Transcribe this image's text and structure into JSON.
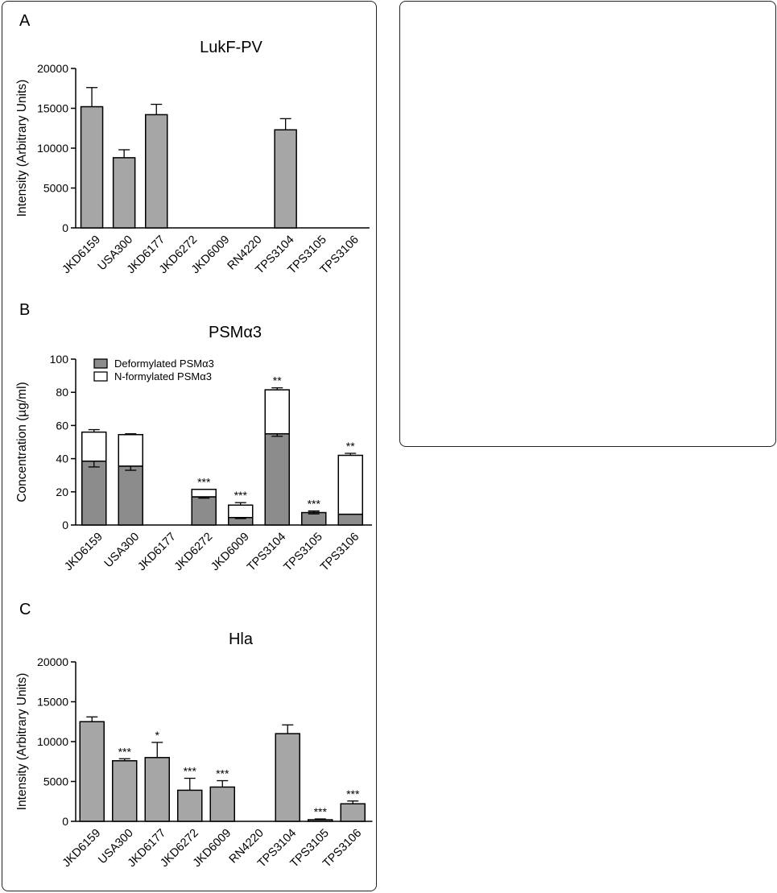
{
  "chart_data": [
    {
      "panel_label": "A",
      "type": "bar",
      "title": "LukF-PV",
      "ylabel": "Intensity (Arbitrary Units)",
      "ylim": [
        0,
        20000
      ],
      "yticks": [
        "0",
        "5000",
        "10000",
        "15000",
        "20000"
      ],
      "categories": [
        "JKD6159",
        "USA300",
        "JKD6177",
        "JKD6272",
        "JKD6009",
        "RN4220",
        "TPS3104",
        "TPS3105",
        "TPS3106"
      ],
      "values": [
        15200,
        8800,
        14200,
        0,
        0,
        0,
        12300,
        0,
        0
      ],
      "errors": [
        2400,
        1000,
        1300,
        0,
        0,
        0,
        1400,
        0,
        0
      ],
      "significance": [
        "",
        "",
        "",
        "",
        "",
        "",
        "",
        "",
        ""
      ]
    },
    {
      "panel_label": "B",
      "type": "stacked_bar",
      "title": "PSMα3",
      "ylabel": "Concentration (µg/ml)",
      "ylim": [
        0,
        100
      ],
      "yticks": [
        "0",
        "20",
        "40",
        "60",
        "80",
        "100"
      ],
      "categories": [
        "JKD6159",
        "USA300",
        "JKD6177",
        "JKD6272",
        "JKD6009",
        "TPS3104",
        "TPS3105",
        "TPS3106"
      ],
      "series": [
        {
          "name": "Deformylated PSMα3",
          "color": "#8c8c8c",
          "values": [
            38.5,
            35.5,
            0,
            17,
            4.5,
            55,
            7.5,
            6.5
          ],
          "errors": [
            3.5,
            2.5,
            0,
            0.8,
            0.6,
            1.5,
            0.8,
            0
          ]
        },
        {
          "name": "N-formylated PSMα3",
          "color": "#ffffff",
          "values": [
            17.5,
            19,
            0,
            4.5,
            7.5,
            26.5,
            0,
            35.5
          ],
          "errors": [
            1.5,
            0.5,
            0,
            0,
            1.5,
            1.2,
            1.0,
            1.2
          ]
        }
      ],
      "significance": [
        "",
        "",
        "",
        "***",
        "***",
        "**",
        "***",
        "**"
      ]
    },
    {
      "panel_label": "C",
      "type": "bar",
      "title": "Hla",
      "ylabel": "Intensity (Arbitrary Units)",
      "ylim": [
        0,
        20000
      ],
      "yticks": [
        "0",
        "5000",
        "10000",
        "15000",
        "20000"
      ],
      "categories": [
        "JKD6159",
        "USA300",
        "JKD6177",
        "JKD6272",
        "JKD6009",
        "RN4220",
        "TPS3104",
        "TPS3105",
        "TPS3106"
      ],
      "values": [
        12500,
        7600,
        8000,
        3900,
        4300,
        0,
        11000,
        200,
        2200
      ],
      "errors": [
        600,
        250,
        1900,
        1500,
        800,
        0,
        1100,
        100,
        350
      ],
      "significance": [
        "",
        "***",
        "*",
        "***",
        "***",
        "",
        "",
        "***",
        "***"
      ]
    }
  ]
}
